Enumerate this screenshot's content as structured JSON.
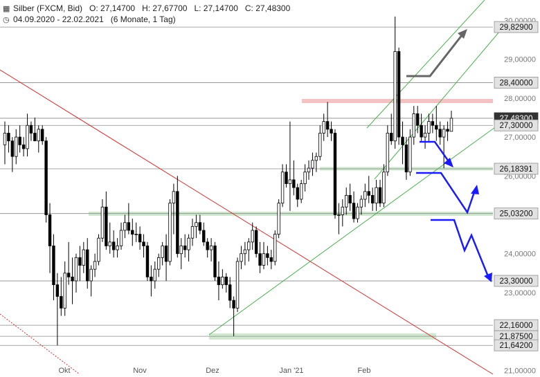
{
  "header": {
    "icon_chart": "candlestick-icon",
    "symbol": "Silber (FXCM, Bid)",
    "open": "O: 27,14700",
    "high": "H: 27,67700",
    "low": "L: 27,14700",
    "close": "C: 27,48300",
    "icon_clock": "clock-icon",
    "daterange": "04.09.2020 - 22.02.2021",
    "period": "(6 Monate, 1 Tag)"
  },
  "colors": {
    "up": "#ffffff",
    "down": "#000000",
    "resistance_band": "#f4c2c2",
    "support_band": "#cfe8cf",
    "channel": "#4caf50",
    "downtrend": "#d32f2f",
    "arrow_blue": "#1a1aff",
    "arrow_gray": "#666666"
  },
  "chart_data": {
    "type": "candlestick",
    "x_ticks": [
      "Okt",
      "Nov",
      "Dez",
      "Jan '21",
      "Feb"
    ],
    "y_ticks": [
      "30,00000",
      "29,00000",
      "28,00000",
      "27,00000",
      "26,00000",
      "25,00000",
      "24,00000",
      "23,00000",
      "22,00000",
      "21,00000"
    ],
    "y_tick_values": [
      30,
      29,
      28,
      27,
      26,
      25,
      24,
      23,
      22,
      21
    ],
    "ylim": [
      20.6,
      30.3
    ],
    "level_labels": [
      {
        "value": 29.829,
        "text": "29,82900",
        "style": "gray"
      },
      {
        "value": 28.4,
        "text": "28,40000",
        "style": "gray"
      },
      {
        "value": 27.483,
        "text": "27,48300",
        "style": "dark"
      },
      {
        "value": 27.3,
        "text": "27,30000",
        "style": "gray"
      },
      {
        "value": 26.18391,
        "text": "26,18391",
        "style": "gray"
      },
      {
        "value": 25.032,
        "text": "25,03200",
        "style": "gray"
      },
      {
        "value": 23.3,
        "text": "23,30000",
        "style": "gray"
      },
      {
        "value": 22.16,
        "text": "22,16000",
        "style": "gray"
      },
      {
        "value": 21.875,
        "text": "21,87500",
        "style": "gray"
      },
      {
        "value": 21.642,
        "text": "21,64200",
        "style": "gray"
      }
    ],
    "ohlc": [
      {
        "d": "2020-09-04",
        "o": 26.8,
        "h": 27.4,
        "l": 26.3,
        "c": 27.1
      },
      {
        "d": "2020-09-07",
        "o": 27.1,
        "h": 27.3,
        "l": 26.6,
        "c": 26.9
      },
      {
        "d": "2020-09-08",
        "o": 26.9,
        "h": 27.0,
        "l": 26.1,
        "c": 26.5
      },
      {
        "d": "2020-09-09",
        "o": 26.5,
        "h": 27.2,
        "l": 26.3,
        "c": 27.0
      },
      {
        "d": "2020-09-10",
        "o": 27.0,
        "h": 27.3,
        "l": 26.6,
        "c": 26.8
      },
      {
        "d": "2020-09-11",
        "o": 26.8,
        "h": 27.0,
        "l": 26.5,
        "c": 26.7
      },
      {
        "d": "2020-09-14",
        "o": 26.7,
        "h": 27.6,
        "l": 26.5,
        "c": 27.3
      },
      {
        "d": "2020-09-15",
        "o": 27.3,
        "h": 27.4,
        "l": 26.9,
        "c": 27.1
      },
      {
        "d": "2020-09-16",
        "o": 27.1,
        "h": 27.5,
        "l": 26.9,
        "c": 26.9
      },
      {
        "d": "2020-09-17",
        "o": 26.9,
        "h": 27.3,
        "l": 26.6,
        "c": 27.2
      },
      {
        "d": "2020-09-18",
        "o": 27.2,
        "h": 27.3,
        "l": 26.8,
        "c": 26.9
      },
      {
        "d": "2020-09-21",
        "o": 26.9,
        "h": 27.0,
        "l": 24.8,
        "c": 25.0
      },
      {
        "d": "2020-09-22",
        "o": 25.0,
        "h": 25.3,
        "l": 23.5,
        "c": 24.2
      },
      {
        "d": "2020-09-23",
        "o": 24.2,
        "h": 24.5,
        "l": 22.8,
        "c": 23.2
      },
      {
        "d": "2020-09-24",
        "o": 23.2,
        "h": 23.5,
        "l": 21.64,
        "c": 22.9
      },
      {
        "d": "2020-09-25",
        "o": 22.9,
        "h": 23.4,
        "l": 22.4,
        "c": 22.6
      },
      {
        "d": "2020-09-28",
        "o": 22.6,
        "h": 23.8,
        "l": 22.4,
        "c": 23.5
      },
      {
        "d": "2020-09-29",
        "o": 23.5,
        "h": 24.3,
        "l": 23.2,
        "c": 23.4
      },
      {
        "d": "2020-09-30",
        "o": 23.4,
        "h": 23.9,
        "l": 22.7,
        "c": 23.3
      },
      {
        "d": "2020-10-01",
        "o": 23.3,
        "h": 24.0,
        "l": 23.0,
        "c": 23.9
      },
      {
        "d": "2020-10-02",
        "o": 23.9,
        "h": 24.2,
        "l": 23.3,
        "c": 23.7
      },
      {
        "d": "2020-10-05",
        "o": 23.7,
        "h": 24.3,
        "l": 23.5,
        "c": 24.1
      },
      {
        "d": "2020-10-06",
        "o": 24.1,
        "h": 24.4,
        "l": 23.1,
        "c": 23.3
      },
      {
        "d": "2020-10-07",
        "o": 23.3,
        "h": 23.7,
        "l": 22.9,
        "c": 23.6
      },
      {
        "d": "2020-10-08",
        "o": 23.6,
        "h": 24.0,
        "l": 23.4,
        "c": 23.8
      },
      {
        "d": "2020-10-09",
        "o": 23.8,
        "h": 24.5,
        "l": 23.7,
        "c": 24.4
      },
      {
        "d": "2020-10-12",
        "o": 24.4,
        "h": 25.4,
        "l": 24.3,
        "c": 25.2
      },
      {
        "d": "2020-10-13",
        "o": 25.2,
        "h": 25.6,
        "l": 24.1,
        "c": 24.2
      },
      {
        "d": "2020-10-14",
        "o": 24.2,
        "h": 24.8,
        "l": 24.0,
        "c": 24.3
      },
      {
        "d": "2020-10-15",
        "o": 24.3,
        "h": 24.6,
        "l": 23.9,
        "c": 24.1
      },
      {
        "d": "2020-10-16",
        "o": 24.1,
        "h": 24.4,
        "l": 23.9,
        "c": 24.2
      },
      {
        "d": "2020-10-19",
        "o": 24.2,
        "h": 24.8,
        "l": 24.1,
        "c": 24.6
      },
      {
        "d": "2020-10-20",
        "o": 24.6,
        "h": 25.0,
        "l": 24.4,
        "c": 24.8
      },
      {
        "d": "2020-10-21",
        "o": 24.8,
        "h": 25.3,
        "l": 24.5,
        "c": 24.6
      },
      {
        "d": "2020-10-22",
        "o": 24.6,
        "h": 24.9,
        "l": 24.2,
        "c": 24.5
      },
      {
        "d": "2020-10-23",
        "o": 24.5,
        "h": 24.8,
        "l": 24.3,
        "c": 24.5
      },
      {
        "d": "2020-10-26",
        "o": 24.5,
        "h": 24.7,
        "l": 24.1,
        "c": 24.3
      },
      {
        "d": "2020-10-27",
        "o": 24.3,
        "h": 24.5,
        "l": 23.9,
        "c": 24.2
      },
      {
        "d": "2020-10-28",
        "o": 24.2,
        "h": 24.3,
        "l": 23.3,
        "c": 23.4
      },
      {
        "d": "2020-10-29",
        "o": 23.4,
        "h": 23.7,
        "l": 22.9,
        "c": 23.3
      },
      {
        "d": "2020-10-30",
        "o": 23.3,
        "h": 23.8,
        "l": 23.1,
        "c": 23.6
      },
      {
        "d": "2020-11-02",
        "o": 23.6,
        "h": 24.0,
        "l": 23.4,
        "c": 23.9
      },
      {
        "d": "2020-11-03",
        "o": 23.9,
        "h": 24.3,
        "l": 23.7,
        "c": 24.2
      },
      {
        "d": "2020-11-04",
        "o": 24.2,
        "h": 24.5,
        "l": 23.3,
        "c": 23.8
      },
      {
        "d": "2020-11-05",
        "o": 23.8,
        "h": 25.4,
        "l": 23.7,
        "c": 25.3
      },
      {
        "d": "2020-11-06",
        "o": 25.3,
        "h": 25.8,
        "l": 24.5,
        "c": 25.6
      },
      {
        "d": "2020-11-09",
        "o": 25.6,
        "h": 26.0,
        "l": 23.9,
        "c": 24.0
      },
      {
        "d": "2020-11-10",
        "o": 24.0,
        "h": 24.4,
        "l": 23.6,
        "c": 24.2
      },
      {
        "d": "2020-11-11",
        "o": 24.2,
        "h": 24.5,
        "l": 23.9,
        "c": 24.1
      },
      {
        "d": "2020-11-12",
        "o": 24.1,
        "h": 24.5,
        "l": 23.8,
        "c": 24.4
      },
      {
        "d": "2020-11-13",
        "o": 24.4,
        "h": 24.9,
        "l": 24.2,
        "c": 24.7
      },
      {
        "d": "2020-11-16",
        "o": 24.7,
        "h": 25.0,
        "l": 24.4,
        "c": 24.8
      },
      {
        "d": "2020-11-17",
        "o": 24.8,
        "h": 25.0,
        "l": 24.5,
        "c": 24.6
      },
      {
        "d": "2020-11-18",
        "o": 24.6,
        "h": 24.8,
        "l": 24.2,
        "c": 24.3
      },
      {
        "d": "2020-11-19",
        "o": 24.3,
        "h": 24.4,
        "l": 23.9,
        "c": 24.1
      },
      {
        "d": "2020-11-20",
        "o": 24.1,
        "h": 24.4,
        "l": 23.8,
        "c": 24.2
      },
      {
        "d": "2020-11-23",
        "o": 24.2,
        "h": 24.3,
        "l": 23.3,
        "c": 23.4
      },
      {
        "d": "2020-11-24",
        "o": 23.4,
        "h": 23.8,
        "l": 22.8,
        "c": 23.2
      },
      {
        "d": "2020-11-25",
        "o": 23.2,
        "h": 23.6,
        "l": 23.1,
        "c": 23.4
      },
      {
        "d": "2020-11-26",
        "o": 23.4,
        "h": 23.5,
        "l": 23.0,
        "c": 23.2
      },
      {
        "d": "2020-11-27",
        "o": 23.2,
        "h": 23.4,
        "l": 22.6,
        "c": 22.8
      },
      {
        "d": "2020-11-30",
        "o": 22.8,
        "h": 22.9,
        "l": 21.88,
        "c": 22.6
      },
      {
        "d": "2020-12-01",
        "o": 22.6,
        "h": 23.9,
        "l": 22.5,
        "c": 23.8
      },
      {
        "d": "2020-12-02",
        "o": 23.8,
        "h": 24.2,
        "l": 23.6,
        "c": 24.0
      },
      {
        "d": "2020-12-03",
        "o": 24.0,
        "h": 24.3,
        "l": 23.7,
        "c": 24.1
      },
      {
        "d": "2020-12-04",
        "o": 24.1,
        "h": 24.4,
        "l": 23.8,
        "c": 24.3
      },
      {
        "d": "2020-12-07",
        "o": 24.3,
        "h": 24.8,
        "l": 24.1,
        "c": 24.6
      },
      {
        "d": "2020-12-08",
        "o": 24.6,
        "h": 24.7,
        "l": 23.9,
        "c": 24.0
      },
      {
        "d": "2020-12-09",
        "o": 24.0,
        "h": 24.3,
        "l": 23.5,
        "c": 23.7
      },
      {
        "d": "2020-12-10",
        "o": 23.7,
        "h": 24.3,
        "l": 23.6,
        "c": 24.0
      },
      {
        "d": "2020-12-11",
        "o": 24.0,
        "h": 24.2,
        "l": 23.7,
        "c": 23.9
      },
      {
        "d": "2020-12-14",
        "o": 23.9,
        "h": 24.1,
        "l": 23.6,
        "c": 23.8
      },
      {
        "d": "2020-12-15",
        "o": 23.8,
        "h": 24.6,
        "l": 23.7,
        "c": 24.5
      },
      {
        "d": "2020-12-16",
        "o": 24.5,
        "h": 25.4,
        "l": 24.4,
        "c": 25.3
      },
      {
        "d": "2020-12-17",
        "o": 25.3,
        "h": 26.3,
        "l": 25.2,
        "c": 26.1
      },
      {
        "d": "2020-12-18",
        "o": 26.1,
        "h": 26.3,
        "l": 25.7,
        "c": 25.8
      },
      {
        "d": "2020-12-21",
        "o": 25.8,
        "h": 27.4,
        "l": 25.1,
        "c": 25.9
      },
      {
        "d": "2020-12-22",
        "o": 25.9,
        "h": 26.4,
        "l": 25.5,
        "c": 25.7
      },
      {
        "d": "2020-12-23",
        "o": 25.7,
        "h": 25.8,
        "l": 25.2,
        "c": 25.4
      },
      {
        "d": "2020-12-24",
        "o": 25.4,
        "h": 25.9,
        "l": 25.3,
        "c": 25.8
      },
      {
        "d": "2020-12-28",
        "o": 25.8,
        "h": 26.3,
        "l": 25.6,
        "c": 26.1
      },
      {
        "d": "2020-12-29",
        "o": 26.1,
        "h": 26.4,
        "l": 25.9,
        "c": 26.2
      },
      {
        "d": "2020-12-30",
        "o": 26.2,
        "h": 26.6,
        "l": 26.0,
        "c": 26.4
      },
      {
        "d": "2020-12-31",
        "o": 26.4,
        "h": 26.6,
        "l": 26.1,
        "c": 26.5
      },
      {
        "d": "2021-01-04",
        "o": 26.5,
        "h": 27.3,
        "l": 26.4,
        "c": 27.1
      },
      {
        "d": "2021-01-05",
        "o": 27.1,
        "h": 27.6,
        "l": 26.9,
        "c": 27.4
      },
      {
        "d": "2021-01-06",
        "o": 27.4,
        "h": 27.9,
        "l": 27.0,
        "c": 27.2
      },
      {
        "d": "2021-01-07",
        "o": 27.2,
        "h": 27.4,
        "l": 26.9,
        "c": 27.1
      },
      {
        "d": "2021-01-08",
        "o": 27.1,
        "h": 27.2,
        "l": 24.9,
        "c": 25.0
      },
      {
        "d": "2021-01-11",
        "o": 25.0,
        "h": 25.3,
        "l": 24.5,
        "c": 25.0
      },
      {
        "d": "2021-01-12",
        "o": 25.0,
        "h": 25.4,
        "l": 24.7,
        "c": 25.2
      },
      {
        "d": "2021-01-13",
        "o": 25.2,
        "h": 25.7,
        "l": 25.0,
        "c": 25.5
      },
      {
        "d": "2021-01-14",
        "o": 25.5,
        "h": 25.8,
        "l": 25.1,
        "c": 25.3
      },
      {
        "d": "2021-01-15",
        "o": 25.3,
        "h": 25.6,
        "l": 24.8,
        "c": 24.9
      },
      {
        "d": "2021-01-18",
        "o": 24.9,
        "h": 25.3,
        "l": 24.8,
        "c": 25.2
      },
      {
        "d": "2021-01-19",
        "o": 25.2,
        "h": 25.5,
        "l": 25.0,
        "c": 25.4
      },
      {
        "d": "2021-01-20",
        "o": 25.4,
        "h": 25.8,
        "l": 25.2,
        "c": 25.6
      },
      {
        "d": "2021-01-21",
        "o": 25.6,
        "h": 26.0,
        "l": 25.3,
        "c": 25.5
      },
      {
        "d": "2021-01-22",
        "o": 25.5,
        "h": 25.7,
        "l": 25.1,
        "c": 25.3
      },
      {
        "d": "2021-01-25",
        "o": 25.3,
        "h": 25.9,
        "l": 25.1,
        "c": 25.7
      },
      {
        "d": "2021-01-26",
        "o": 25.7,
        "h": 25.9,
        "l": 25.2,
        "c": 25.3
      },
      {
        "d": "2021-01-27",
        "o": 25.3,
        "h": 26.3,
        "l": 25.2,
        "c": 26.1
      },
      {
        "d": "2021-01-28",
        "o": 26.1,
        "h": 27.3,
        "l": 26.0,
        "c": 27.1
      },
      {
        "d": "2021-01-29",
        "o": 27.1,
        "h": 27.6,
        "l": 26.8,
        "c": 26.9
      },
      {
        "d": "2021-02-01",
        "o": 26.9,
        "h": 30.1,
        "l": 26.7,
        "c": 29.2
      },
      {
        "d": "2021-02-02",
        "o": 29.2,
        "h": 29.3,
        "l": 26.8,
        "c": 27.0
      },
      {
        "d": "2021-02-03",
        "o": 27.0,
        "h": 27.4,
        "l": 26.3,
        "c": 26.8
      },
      {
        "d": "2021-02-04",
        "o": 26.8,
        "h": 27.0,
        "l": 25.9,
        "c": 26.1
      },
      {
        "d": "2021-02-05",
        "o": 26.1,
        "h": 27.2,
        "l": 26.0,
        "c": 27.0
      },
      {
        "d": "2021-02-08",
        "o": 27.0,
        "h": 27.8,
        "l": 26.8,
        "c": 27.6
      },
      {
        "d": "2021-02-09",
        "o": 27.6,
        "h": 27.8,
        "l": 27.1,
        "c": 27.3
      },
      {
        "d": "2021-02-10",
        "o": 27.3,
        "h": 27.6,
        "l": 26.9,
        "c": 27.0
      },
      {
        "d": "2021-02-11",
        "o": 27.0,
        "h": 27.3,
        "l": 26.7,
        "c": 27.1
      },
      {
        "d": "2021-02-12",
        "o": 27.1,
        "h": 27.6,
        "l": 26.9,
        "c": 27.4
      },
      {
        "d": "2021-02-15",
        "o": 27.4,
        "h": 27.6,
        "l": 27.1,
        "c": 27.3
      },
      {
        "d": "2021-02-16",
        "o": 27.3,
        "h": 27.8,
        "l": 26.9,
        "c": 27.2
      },
      {
        "d": "2021-02-17",
        "o": 27.2,
        "h": 27.4,
        "l": 26.8,
        "c": 27.0
      },
      {
        "d": "2021-02-18",
        "o": 27.0,
        "h": 27.3,
        "l": 26.2,
        "c": 27.2
      },
      {
        "d": "2021-02-19",
        "o": 27.2,
        "h": 27.4,
        "l": 26.9,
        "c": 27.147
      },
      {
        "d": "2021-02-22",
        "o": 27.147,
        "h": 27.677,
        "l": 27.147,
        "c": 27.483
      }
    ]
  }
}
